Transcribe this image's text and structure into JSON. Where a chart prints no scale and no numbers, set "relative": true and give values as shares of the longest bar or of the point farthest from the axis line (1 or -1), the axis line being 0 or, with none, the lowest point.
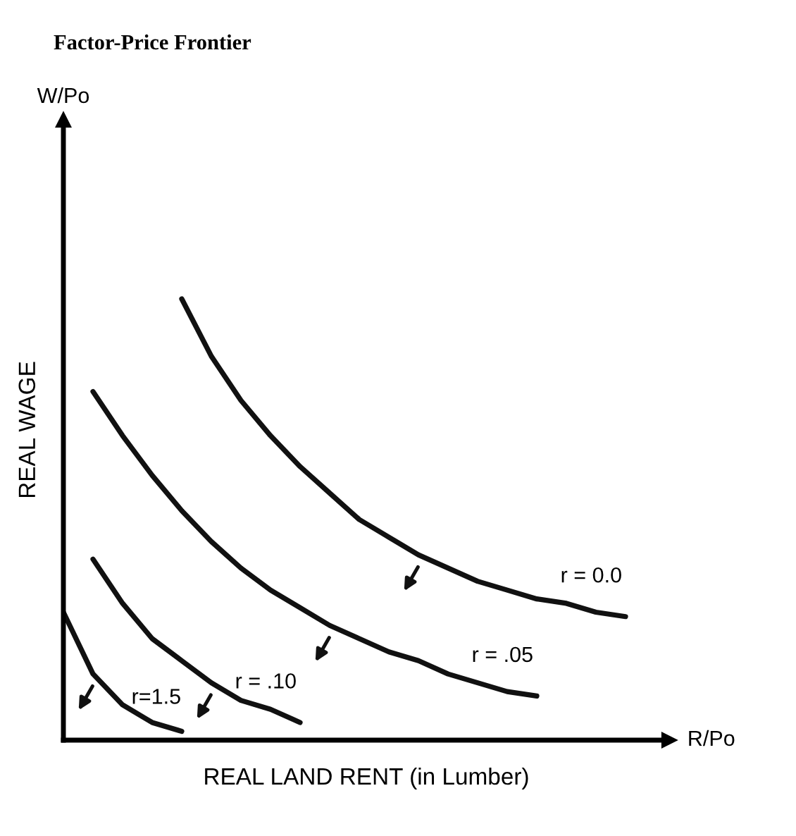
{
  "chart_data": {
    "type": "line",
    "title": "Factor-Price Frontier",
    "xlabel": "REAL LAND RENT (in Lumber)",
    "ylabel": "REAL WAGE",
    "annotations": [
      "W/Po",
      "R/Po"
    ],
    "relative": true,
    "marker": "none",
    "line_style": "solid",
    "categories": [
      null,
      null,
      null,
      null,
      null,
      null,
      null,
      null,
      null,
      null,
      null,
      null,
      null,
      null,
      null,
      null,
      null,
      null,
      null,
      null,
      null
    ],
    "series": [
      {
        "name": "r = 0.0",
        "color": "#111111",
        "values": [
          null,
          null,
          null,
          null,
          1.0,
          0.87,
          0.77,
          0.69,
          0.62,
          0.56,
          0.5,
          0.46,
          0.42,
          0.39,
          0.36,
          0.34,
          0.32,
          0.31,
          0.29,
          0.28,
          null
        ]
      },
      {
        "name": "r = .05",
        "color": "#111111",
        "values": [
          null,
          0.79,
          0.69,
          0.6,
          0.52,
          0.45,
          0.39,
          0.34,
          0.3,
          0.26,
          0.23,
          0.2,
          0.18,
          0.15,
          0.13,
          0.11,
          0.1,
          null,
          null,
          null,
          null
        ]
      },
      {
        "name": "r = .10",
        "color": "#111111",
        "values": [
          null,
          0.41,
          0.31,
          0.23,
          0.18,
          0.13,
          0.09,
          0.07,
          0.04,
          null,
          null,
          null,
          null,
          null,
          null,
          null,
          null,
          null,
          null,
          null,
          null
        ]
      },
      {
        "name": "r=1.5",
        "color": "#111111",
        "values": [
          0.29,
          0.15,
          0.08,
          0.04,
          0.02,
          null,
          null,
          null,
          null,
          null,
          null,
          null,
          null,
          null,
          null,
          null,
          null,
          null,
          null,
          null,
          null
        ]
      }
    ]
  }
}
